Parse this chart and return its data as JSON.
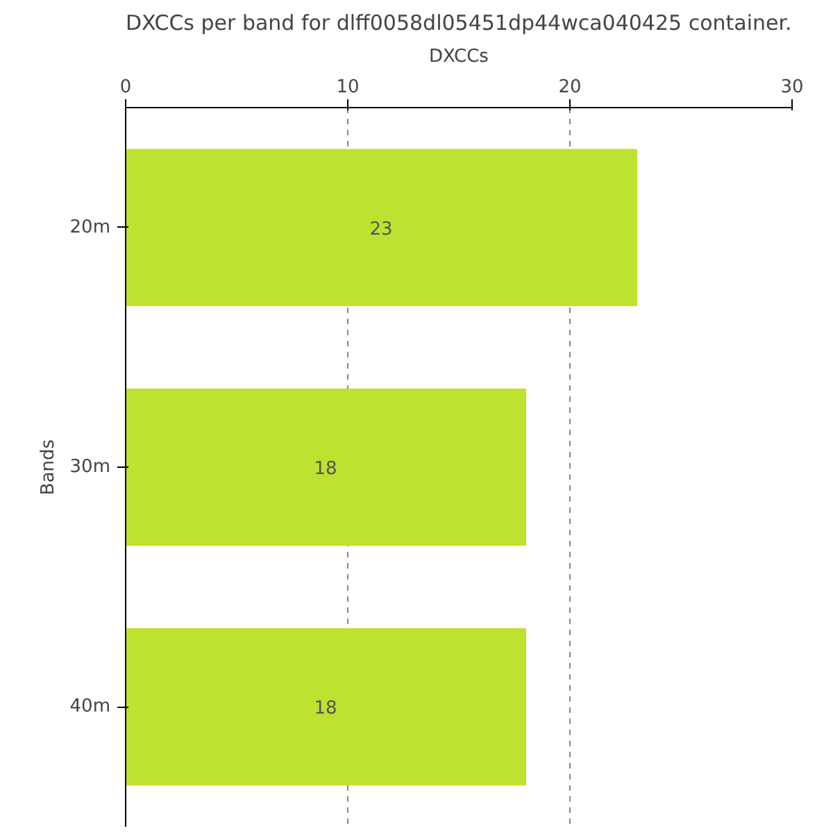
{
  "chart_data": {
    "type": "bar",
    "orientation": "horizontal",
    "title": "DXCCs per band for dlff0058dl05451dp44wca040425 container.",
    "xlabel": "DXCCs",
    "ylabel": "Bands",
    "categories": [
      "20m",
      "30m",
      "40m"
    ],
    "values": [
      23,
      18,
      18
    ],
    "color": "#bde22f",
    "data_labels": true,
    "xlim": [
      0,
      30
    ],
    "xticks": [
      0,
      10,
      20,
      30
    ],
    "grid": "x"
  }
}
